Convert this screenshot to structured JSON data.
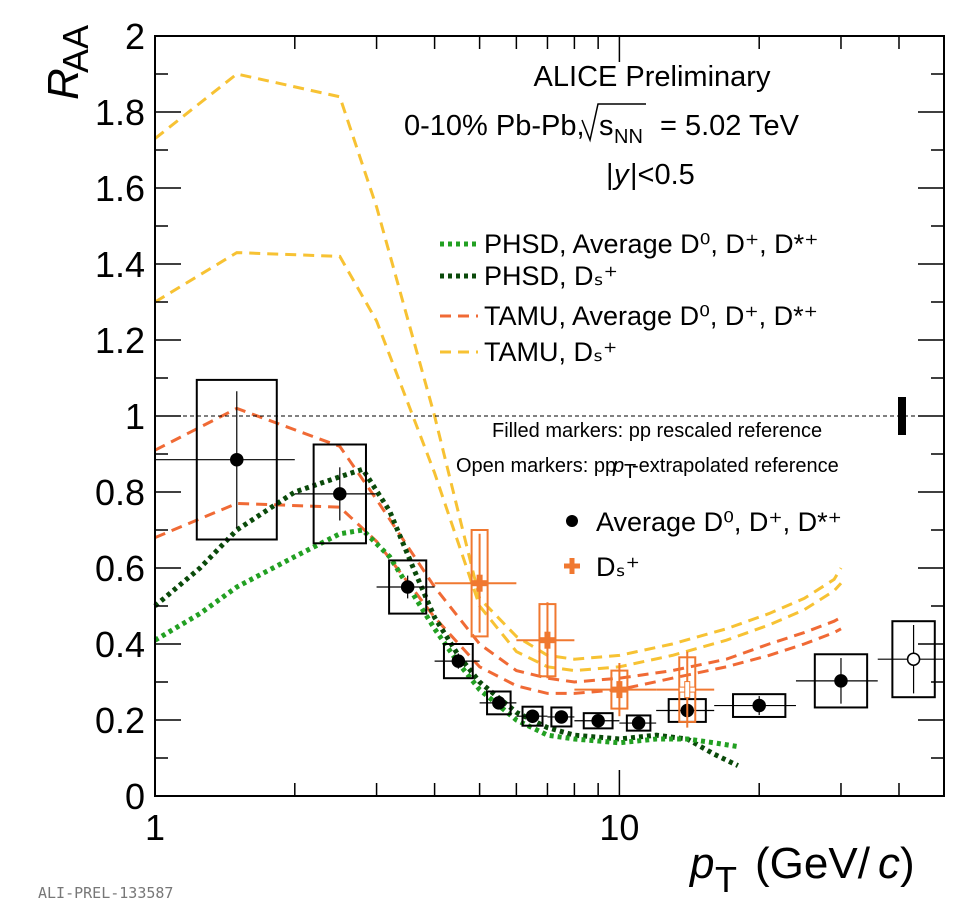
{
  "chart_data": {
    "type": "scatter",
    "xlabel": "p_T (GeV/c)",
    "ylabel": "R_AA",
    "x_scale": "log",
    "xlim": [
      1,
      50
    ],
    "ylim": [
      0,
      2
    ],
    "x_tick_labels": [
      "1",
      "10"
    ],
    "y_tick_labels": [
      "0",
      "0.2",
      "0.4",
      "0.6",
      "0.8",
      "1",
      "1.2",
      "1.4",
      "1.6",
      "1.8",
      "2"
    ],
    "annotations": {
      "experiment": "ALICE Preliminary",
      "system": "0-10% Pb-Pb, √s_NN = 5.02 TeV",
      "rapidity": "|y|<0.5",
      "filled_note": "Filled markers: pp rescaled reference",
      "open_note": "Open markers: pp p_T-extrapolated reference",
      "figure_id": "ALI-PREL-133587"
    },
    "reference_line": 1,
    "normalization_uncertainty": [
      0.95,
      1.05
    ],
    "legend": {
      "models": [
        {
          "label": "PHSD, Average D⁰, D⁺, D*⁺",
          "color": "#22a022",
          "style": "dotted"
        },
        {
          "label": "PHSD, Dₛ⁺",
          "color": "#0a4a0a",
          "style": "dotted"
        },
        {
          "label": "TAMU, Average D⁰, D⁺, D*⁺",
          "color": "#f06a35",
          "style": "dashed"
        },
        {
          "label": "TAMU, Dₛ⁺",
          "color": "#f7c233",
          "style": "dashed"
        }
      ],
      "data": [
        {
          "label": "Average D⁰, D⁺, D*⁺",
          "color": "#000000",
          "marker": "circle"
        },
        {
          "label": "Dₛ⁺",
          "color": "#f07830",
          "marker": "cross"
        }
      ]
    },
    "series": [
      {
        "name": "Average D⁰, D⁺, D*⁺",
        "color": "#000000",
        "points": [
          {
            "x": 1.5,
            "xlo": 1,
            "xhi": 2,
            "y": 0.885,
            "stat": 0.18,
            "sys": 0.21
          },
          {
            "x": 2.5,
            "xlo": 2,
            "xhi": 3,
            "y": 0.795,
            "stat": 0.07,
            "sys": 0.13
          },
          {
            "x": 3.5,
            "xlo": 3,
            "xhi": 4,
            "y": 0.55,
            "stat": 0.03,
            "sys": 0.07
          },
          {
            "x": 4.5,
            "xlo": 4,
            "xhi": 5,
            "y": 0.355,
            "stat": 0.02,
            "sys": 0.045
          },
          {
            "x": 5.5,
            "xlo": 5,
            "xhi": 6,
            "y": 0.245,
            "stat": 0.015,
            "sys": 0.03
          },
          {
            "x": 6.5,
            "xlo": 6,
            "xhi": 7,
            "y": 0.21,
            "stat": 0.012,
            "sys": 0.025
          },
          {
            "x": 7.5,
            "xlo": 7,
            "xhi": 8,
            "y": 0.208,
            "stat": 0.012,
            "sys": 0.025
          },
          {
            "x": 9,
            "xlo": 8,
            "xhi": 10,
            "y": 0.198,
            "stat": 0.012,
            "sys": 0.02
          },
          {
            "x": 11,
            "xlo": 10,
            "xhi": 12,
            "y": 0.192,
            "stat": 0.012,
            "sys": 0.02
          },
          {
            "x": 14,
            "xlo": 12,
            "xhi": 16,
            "y": 0.225,
            "stat": 0.03,
            "sys": 0.03
          },
          {
            "x": 20,
            "xlo": 16,
            "xhi": 24,
            "y": 0.238,
            "stat": 0.025,
            "sys": 0.03
          },
          {
            "x": 30,
            "xlo": 24,
            "xhi": 36,
            "y": 0.303,
            "stat": 0.06,
            "sys": 0.07
          },
          {
            "x": 43,
            "xlo": 36,
            "xhi": 50,
            "y": 0.36,
            "stat": 0.09,
            "sys": 0.1,
            "open": true
          }
        ]
      },
      {
        "name": "Dₛ⁺",
        "color": "#f07830",
        "points": [
          {
            "x": 5,
            "xlo": 4,
            "xhi": 6,
            "y": 0.56,
            "stat": 0.13,
            "sys": 0.14
          },
          {
            "x": 7,
            "xlo": 6,
            "xhi": 8,
            "y": 0.41,
            "stat": 0.1,
            "sys": 0.095
          },
          {
            "x": 10,
            "xlo": 8,
            "xhi": 12,
            "y": 0.28,
            "stat": 0.07,
            "sys": 0.05
          },
          {
            "x": 14,
            "xlo": 12,
            "xhi": 16,
            "y": 0.28,
            "stat": 0.1,
            "sys": 0.085,
            "open": true
          }
        ]
      }
    ],
    "models": [
      {
        "name": "TAMU, Dₛ⁺",
        "color": "#f7c233",
        "style": "dashed",
        "bands": [
          [
            [
              1,
              1.73
            ],
            [
              1.5,
              1.9
            ],
            [
              2.5,
              1.84
            ],
            [
              3,
              1.55
            ],
            [
              4,
              1.0
            ],
            [
              5,
              0.52
            ],
            [
              6,
              0.42
            ],
            [
              7,
              0.37
            ],
            [
              8,
              0.36
            ],
            [
              10,
              0.37
            ],
            [
              13,
              0.4
            ],
            [
              17,
              0.44
            ],
            [
              21,
              0.48
            ],
            [
              25,
              0.52
            ],
            [
              29,
              0.57
            ],
            [
              30,
              0.6
            ]
          ],
          [
            [
              1,
              1.3
            ],
            [
              1.5,
              1.43
            ],
            [
              2.5,
              1.42
            ],
            [
              3,
              1.25
            ],
            [
              4,
              0.85
            ],
            [
              5,
              0.5
            ],
            [
              6,
              0.38
            ],
            [
              7,
              0.34
            ],
            [
              8,
              0.33
            ],
            [
              10,
              0.34
            ],
            [
              13,
              0.37
            ],
            [
              17,
              0.41
            ],
            [
              21,
              0.45
            ],
            [
              25,
              0.49
            ],
            [
              29,
              0.54
            ],
            [
              30,
              0.56
            ]
          ]
        ]
      },
      {
        "name": "TAMU, Average D⁰, D⁺, D*⁺",
        "color": "#f06a35",
        "style": "dashed",
        "bands": [
          [
            [
              1,
              0.91
            ],
            [
              1.5,
              1.02
            ],
            [
              2.5,
              0.92
            ],
            [
              3,
              0.78
            ],
            [
              4,
              0.55
            ],
            [
              5,
              0.4
            ],
            [
              6,
              0.33
            ],
            [
              7,
              0.31
            ],
            [
              8,
              0.3
            ],
            [
              10,
              0.31
            ],
            [
              13,
              0.33
            ],
            [
              17,
              0.36
            ],
            [
              21,
              0.4
            ],
            [
              25,
              0.43
            ],
            [
              29,
              0.46
            ],
            [
              30,
              0.47
            ]
          ],
          [
            [
              1,
              0.68
            ],
            [
              1.5,
              0.77
            ],
            [
              2.5,
              0.76
            ],
            [
              3,
              0.67
            ],
            [
              4,
              0.47
            ],
            [
              5,
              0.34
            ],
            [
              6,
              0.29
            ],
            [
              7,
              0.27
            ],
            [
              8,
              0.27
            ],
            [
              10,
              0.28
            ],
            [
              13,
              0.31
            ],
            [
              17,
              0.34
            ],
            [
              21,
              0.37
            ],
            [
              25,
              0.4
            ],
            [
              29,
              0.43
            ],
            [
              30,
              0.44
            ]
          ]
        ]
      },
      {
        "name": "PHSD, Dₛ⁺",
        "color": "#0a4a0a",
        "style": "dotted",
        "bands": [
          [
            [
              1,
              0.5
            ],
            [
              1.25,
              0.6
            ],
            [
              1.5,
              0.7
            ],
            [
              2,
              0.8
            ],
            [
              2.5,
              0.84
            ],
            [
              2.8,
              0.86
            ],
            [
              3.2,
              0.75
            ],
            [
              3.6,
              0.6
            ],
            [
              4,
              0.47
            ],
            [
              4.5,
              0.37
            ],
            [
              5,
              0.3
            ],
            [
              6,
              0.22
            ],
            [
              7,
              0.18
            ],
            [
              8,
              0.16
            ],
            [
              10,
              0.15
            ],
            [
              12,
              0.16
            ],
            [
              14,
              0.15
            ],
            [
              16,
              0.11
            ],
            [
              18,
              0.08
            ]
          ]
        ]
      },
      {
        "name": "PHSD, Average D⁰, D⁺, D*⁺",
        "color": "#22a022",
        "style": "dotted",
        "bands": [
          [
            [
              1,
              0.41
            ],
            [
              1.25,
              0.48
            ],
            [
              1.5,
              0.55
            ],
            [
              2,
              0.63
            ],
            [
              2.5,
              0.69
            ],
            [
              2.8,
              0.7
            ],
            [
              3.2,
              0.63
            ],
            [
              3.6,
              0.53
            ],
            [
              4,
              0.44
            ],
            [
              4.5,
              0.35
            ],
            [
              5,
              0.28
            ],
            [
              6,
              0.2
            ],
            [
              7,
              0.16
            ],
            [
              8,
              0.15
            ],
            [
              10,
              0.14
            ],
            [
              12,
              0.15
            ],
            [
              14,
              0.15
            ],
            [
              16,
              0.14
            ],
            [
              18,
              0.13
            ]
          ]
        ]
      }
    ]
  }
}
